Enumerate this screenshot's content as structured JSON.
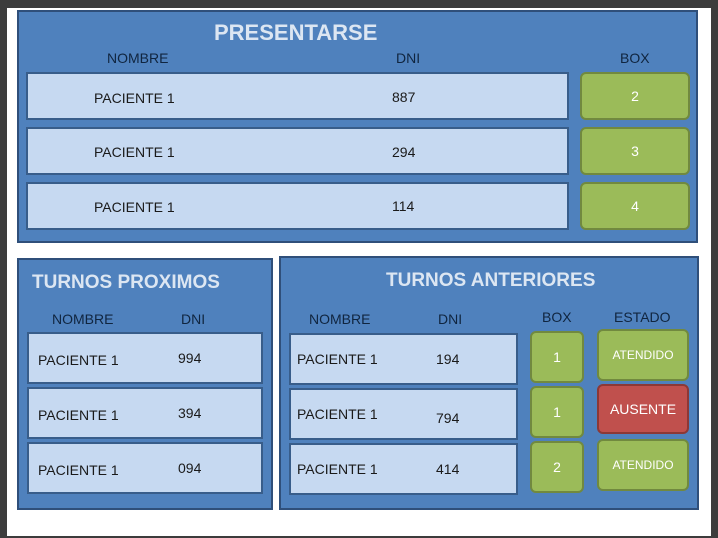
{
  "presentarse": {
    "title": "PRESENTARSE",
    "headers": {
      "nombre": "NOMBRE",
      "dni": "DNI",
      "box": "BOX"
    },
    "rows": [
      {
        "nombre": "PACIENTE 1",
        "dni": "887",
        "box": "2"
      },
      {
        "nombre": "PACIENTE 1",
        "dni": "294",
        "box": "3"
      },
      {
        "nombre": "PACIENTE 1",
        "dni": "114",
        "box": "4"
      }
    ]
  },
  "proximos": {
    "title": "TURNOS PROXIMOS",
    "headers": {
      "nombre": "NOMBRE",
      "dni": "DNI"
    },
    "rows": [
      {
        "nombre": "PACIENTE 1",
        "dni": "994"
      },
      {
        "nombre": "PACIENTE 1",
        "dni": "394"
      },
      {
        "nombre": "PACIENTE 1",
        "dni": "094"
      }
    ]
  },
  "anteriores": {
    "title": "TURNOS ANTERIORES",
    "headers": {
      "nombre": "NOMBRE",
      "dni": "DNI",
      "box": "BOX",
      "estado": "ESTADO"
    },
    "rows": [
      {
        "nombre": "PACIENTE 1",
        "dni": "194",
        "box": "1",
        "estado": "ATENDIDO"
      },
      {
        "nombre": "PACIENTE 1",
        "dni": "794",
        "box": "1",
        "estado": "AUSENTE"
      },
      {
        "nombre": "PACIENTE 1",
        "dni": "414",
        "box": "2",
        "estado": "ATENDIDO"
      }
    ]
  },
  "colors": {
    "panel": "#4f81bd",
    "row": "#c6d9f1",
    "box_button": "#9bbb59",
    "status_ausente": "#c0504d"
  }
}
